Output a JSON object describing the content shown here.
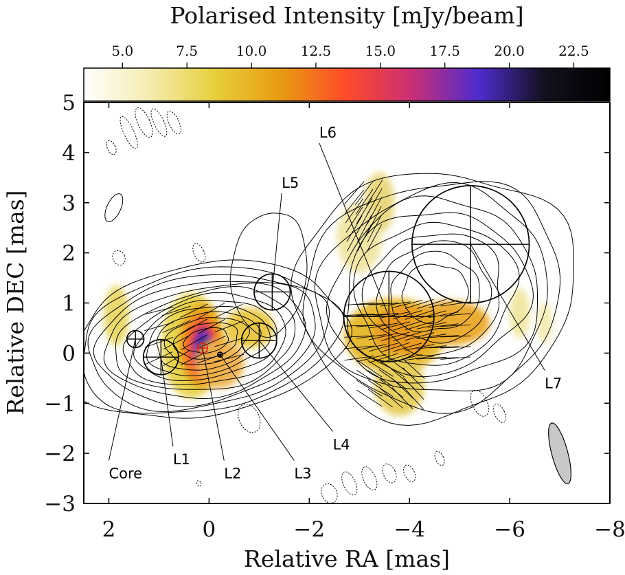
{
  "chart_data": {
    "type": "contour_map",
    "colorbar": {
      "title": "Polarised Intensity [mJy/beam]",
      "ticks": [
        5.0,
        7.5,
        10.0,
        12.5,
        15.0,
        17.5,
        20.0,
        22.5
      ],
      "tick_labels": [
        "5.0",
        "7.5",
        "10.0",
        "12.5",
        "15.0",
        "17.5",
        "20.0",
        "22.5"
      ],
      "range": [
        3.5,
        23.9
      ],
      "colormap": [
        "#ffffff",
        "#f5ecb0",
        "#e7cf3b",
        "#e89a12",
        "#ff4a2a",
        "#c82e76",
        "#4e2ccf",
        "#14101e",
        "#000000"
      ]
    },
    "xlabel": "Relative RA [mas]",
    "ylabel": "Relative DEC [mas]",
    "xlim": [
      2.5,
      -8
    ],
    "ylim": [
      -3,
      5
    ],
    "xticks": [
      2,
      0,
      -2,
      -4,
      -6,
      -8
    ],
    "xtick_labels": [
      "2",
      "0",
      "−2",
      "−4",
      "−6",
      "−8"
    ],
    "yticks": [
      -3,
      -2,
      -1,
      0,
      1,
      2,
      3,
      4,
      5
    ],
    "ytick_labels": [
      "−3",
      "−2",
      "−1",
      "0",
      "1",
      "2",
      "3",
      "4",
      "5"
    ],
    "components": [
      {
        "name": "Core",
        "ra": 1.47,
        "dec": 0.28,
        "r": 0.17,
        "label_ra": 2.0,
        "label_dec": -2.28
      },
      {
        "name": "L1",
        "ra": 0.96,
        "dec": -0.08,
        "r": 0.35,
        "label_ra": 0.72,
        "label_dec": -2.0
      },
      {
        "name": "L2",
        "ra": 0.13,
        "dec": 0.1,
        "r": 0.1,
        "label_ra": -0.3,
        "label_dec": -2.28
      },
      {
        "name": "L3",
        "ra": -0.22,
        "dec": -0.03,
        "r": 0.05,
        "label_ra": -1.7,
        "label_dec": -2.28
      },
      {
        "name": "L4",
        "ra": -1.0,
        "dec": 0.25,
        "r": 0.35,
        "label_ra": -2.47,
        "label_dec": -1.7
      },
      {
        "name": "L5",
        "ra": -1.26,
        "dec": 1.22,
        "r": 0.36,
        "label_ra": -1.45,
        "label_dec": 3.3
      },
      {
        "name": "L6",
        "ra": -3.59,
        "dec": 0.73,
        "r": 0.9,
        "label_ra": -2.2,
        "label_dec": 4.3
      },
      {
        "name": "L7",
        "ra": -5.22,
        "dec": 2.17,
        "r": 1.17,
        "label_ra": -6.7,
        "label_dec": -0.48
      }
    ],
    "polarisation_peak": {
      "ra": 0.13,
      "dec": 0.1
    },
    "beam": {
      "ra": -7.0,
      "dec": -2.0,
      "major_mas": 1.25,
      "minor_mas": 0.32,
      "pa_deg": -15
    },
    "contours": "solid positive total-intensity contours, dotted negative contours",
    "grid": false
  }
}
